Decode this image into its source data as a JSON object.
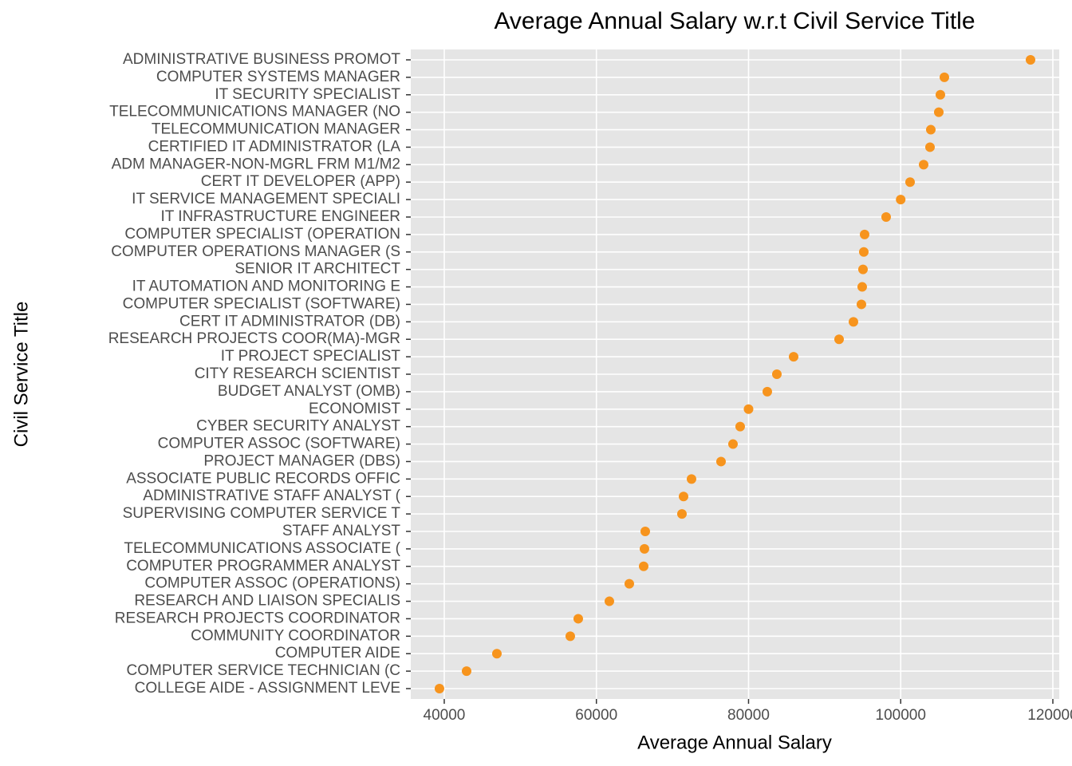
{
  "chart_data": {
    "type": "scatter",
    "title": "Average Annual Salary w.r.t Civil Service Title",
    "x_label": "Average Annual Salary",
    "y_label": "Civil Service Title",
    "color": "#f7941d",
    "grid": true,
    "xlim": [
      35600,
      120840
    ],
    "xticks": [
      40000,
      60000,
      80000,
      100000,
      120000
    ],
    "categories": [
      "ADMINISTRATIVE BUSINESS PROMOT",
      "COMPUTER SYSTEMS MANAGER",
      "IT SECURITY SPECIALIST",
      "TELECOMMUNICATIONS MANAGER (NO",
      "TELECOMMUNICATION MANAGER",
      "CERTIFIED IT ADMINISTRATOR (LA",
      "ADM MANAGER-NON-MGRL FRM M1/M2",
      "CERT IT DEVELOPER (APP)",
      "IT SERVICE MANAGEMENT SPECIALI",
      "IT INFRASTRUCTURE ENGINEER",
      "COMPUTER SPECIALIST (OPERATION",
      "COMPUTER OPERATIONS MANAGER (S",
      "SENIOR IT ARCHITECT",
      "IT AUTOMATION AND MONITORING E",
      "COMPUTER SPECIALIST (SOFTWARE)",
      "CERT IT ADMINISTRATOR (DB)",
      "RESEARCH PROJECTS COOR(MA)-MGR",
      "IT PROJECT SPECIALIST",
      "CITY RESEARCH SCIENTIST",
      "BUDGET ANALYST (OMB)",
      "ECONOMIST",
      "CYBER SECURITY ANALYST",
      "COMPUTER ASSOC (SOFTWARE)",
      "PROJECT MANAGER (DBS)",
      "ASSOCIATE PUBLIC RECORDS OFFIC",
      "ADMINISTRATIVE STAFF ANALYST (",
      "SUPERVISING COMPUTER SERVICE T",
      "STAFF ANALYST",
      "TELECOMMUNICATIONS ASSOCIATE (",
      "COMPUTER PROGRAMMER ANALYST",
      "COMPUTER ASSOC (OPERATIONS)",
      "RESEARCH AND LIAISON SPECIALIS",
      "RESEARCH PROJECTS COORDINATOR",
      "COMMUNITY COORDINATOR",
      "COMPUTER AIDE",
      "COMPUTER SERVICE TECHNICIAN (C",
      "COLLEGE AIDE - ASSIGNMENT LEVE"
    ],
    "values": [
      117065,
      105740,
      105216,
      105007,
      103958,
      103853,
      103014,
      101232,
      100000,
      98086,
      95255,
      95150,
      95045,
      94940,
      94836,
      93787,
      91900,
      85924,
      83722,
      82464,
      80000,
      78899,
      77955,
      76383,
      72503,
      71455,
      71245,
      66422,
      66317,
      66212,
      64325,
      61704,
      57615,
      56566,
      46920,
      42936,
      39371
    ]
  }
}
